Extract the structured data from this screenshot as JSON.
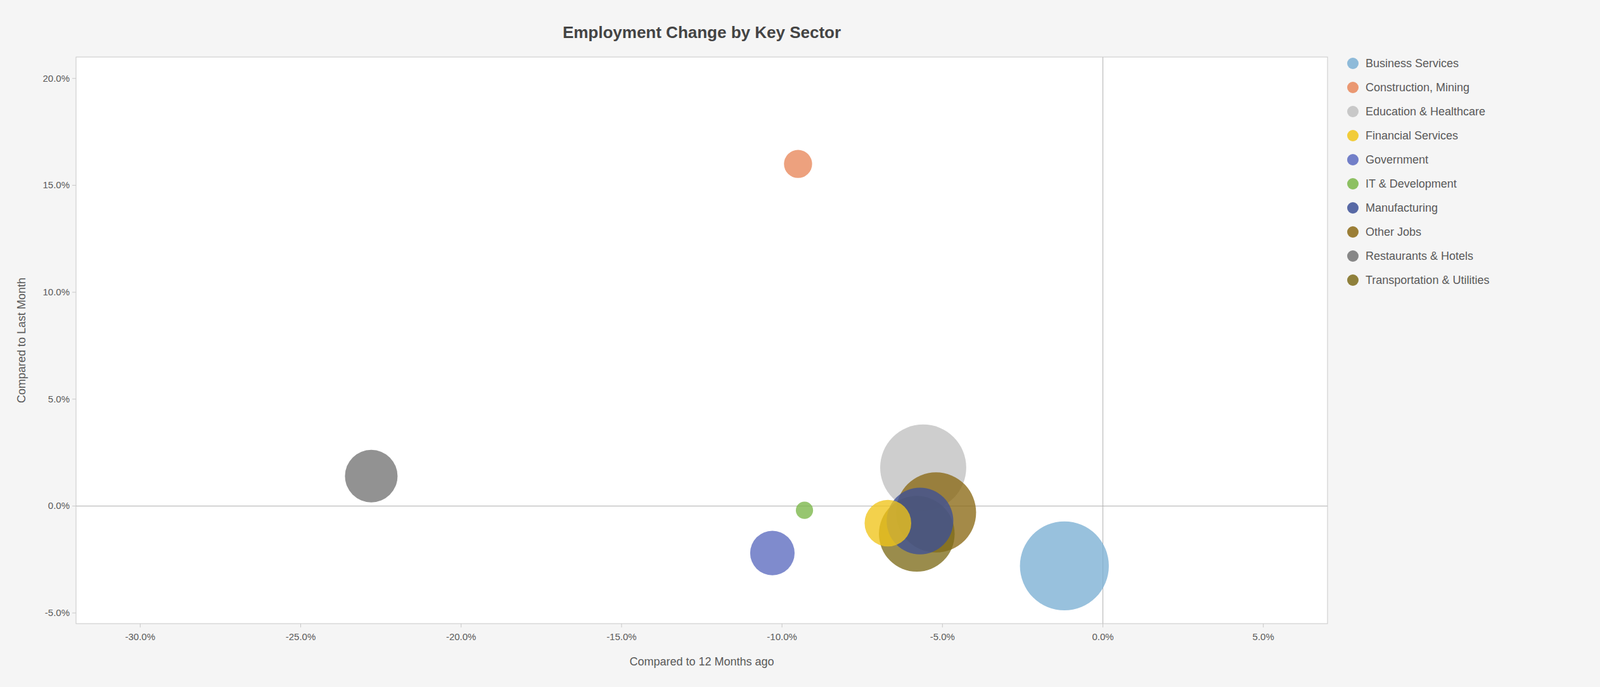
{
  "chart_data": {
    "type": "bubble",
    "title": "Employment Change by Key Sector",
    "xlabel": "Compared to 12 Months ago",
    "ylabel": "Compared to Last Month",
    "xlim": [
      -0.32,
      0.07
    ],
    "ylim": [
      -0.055,
      0.21
    ],
    "xticks": [
      {
        "value": -0.3,
        "label": "-30.0%"
      },
      {
        "value": -0.25,
        "label": "-25.0%"
      },
      {
        "value": -0.2,
        "label": "-20.0%"
      },
      {
        "value": -0.15,
        "label": "-15.0%"
      },
      {
        "value": -0.1,
        "label": "-10.0%"
      },
      {
        "value": -0.05,
        "label": "-5.0%"
      },
      {
        "value": 0.0,
        "label": "0.0%"
      },
      {
        "value": 0.05,
        "label": "5.0%"
      }
    ],
    "yticks": [
      {
        "value": -0.05,
        "label": "-5.0%"
      },
      {
        "value": 0.0,
        "label": "0.0%"
      },
      {
        "value": 0.05,
        "label": "5.0%"
      },
      {
        "value": 0.1,
        "label": "10.0%"
      },
      {
        "value": 0.15,
        "label": "15.0%"
      },
      {
        "value": 0.2,
        "label": "20.0%"
      }
    ],
    "grid": false,
    "legend": "right",
    "series": [
      {
        "name": "Business Services",
        "color": "#7bafd4",
        "x": [
          -0.012
        ],
        "values": [
          -0.028
        ],
        "size": [
          8000
        ]
      },
      {
        "name": "Construction, Mining",
        "color": "#e8875a",
        "x": [
          -0.095
        ],
        "values": [
          0.16
        ],
        "size": [
          800
        ]
      },
      {
        "name": "Education & Healthcare",
        "color": "#c0c0c0",
        "x": [
          -0.056
        ],
        "values": [
          0.018
        ],
        "size": [
          7500
        ]
      },
      {
        "name": "Financial Services",
        "color": "#f0c419",
        "x": [
          -0.067
        ],
        "values": [
          -0.008
        ],
        "size": [
          2200
        ]
      },
      {
        "name": "Government",
        "color": "#5b6abf",
        "x": [
          -0.103
        ],
        "values": [
          -0.022
        ],
        "size": [
          2000
        ]
      },
      {
        "name": "IT & Development",
        "color": "#7ab648",
        "x": [
          -0.093
        ],
        "values": [
          -0.002
        ],
        "size": [
          300
        ]
      },
      {
        "name": "Manufacturing",
        "color": "#3c5096",
        "x": [
          -0.057
        ],
        "values": [
          -0.007
        ],
        "size": [
          4500
        ]
      },
      {
        "name": "Other Jobs",
        "color": "#8b6914",
        "x": [
          -0.052
        ],
        "values": [
          -0.003
        ],
        "size": [
          6500
        ]
      },
      {
        "name": "Restaurants & Hotels",
        "color": "#737373",
        "x": [
          -0.228
        ],
        "values": [
          0.014
        ],
        "size": [
          2800
        ]
      },
      {
        "name": "Transportation & Utilities",
        "color": "#7d6b1a",
        "x": [
          -0.058
        ],
        "values": [
          -0.013
        ],
        "size": [
          5800
        ]
      }
    ]
  }
}
